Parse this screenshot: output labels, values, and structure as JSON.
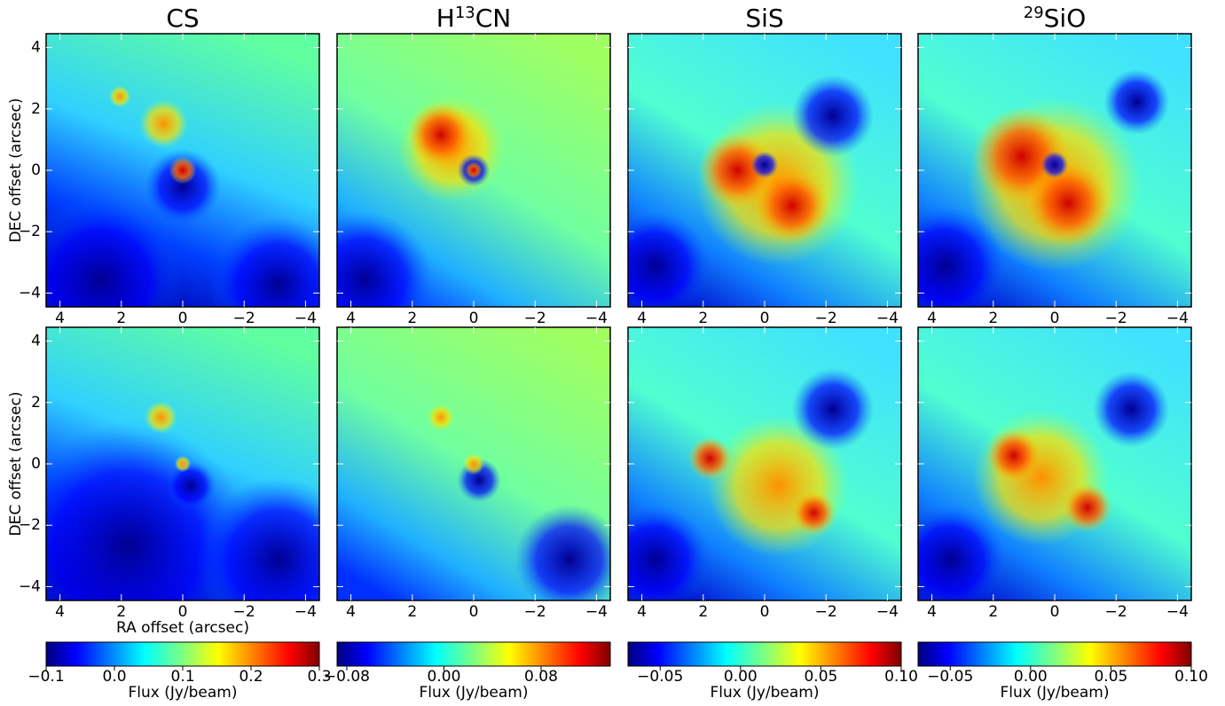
{
  "chart_data": [
    {
      "type": "heatmap",
      "title": [
        {
          "text": "CS"
        }
      ],
      "ylabel": "DEC offset (arcsec)",
      "xlim": [
        4.45,
        -4.45
      ],
      "ylim": [
        -4.45,
        4.45
      ],
      "xticks": [
        4,
        2,
        0,
        {
          "value": -2,
          "label": "−2"
        },
        {
          "value": -4,
          "label": "−4"
        }
      ],
      "yticks": [
        {
          "value": -4,
          "label": "−4"
        },
        {
          "value": -2,
          "label": "−2"
        },
        0,
        2,
        4
      ]
    },
    {
      "type": "heatmap",
      "title": [
        {
          "text": "H"
        },
        {
          "text": "13",
          "sup": true
        },
        {
          "text": "CN"
        }
      ],
      "xlim": [
        4.45,
        -4.45
      ],
      "ylim": [
        -4.45,
        4.45
      ],
      "xticks": [
        4,
        2,
        0,
        {
          "value": -2,
          "label": "−2"
        },
        {
          "value": -4,
          "label": "−4"
        }
      ],
      "yticks": [
        -4,
        -2,
        0,
        2,
        4
      ]
    },
    {
      "type": "heatmap",
      "title": [
        {
          "text": "SiS"
        }
      ],
      "xlim": [
        4.45,
        -4.45
      ],
      "ylim": [
        -4.45,
        4.45
      ],
      "xticks": [
        4,
        2,
        0,
        {
          "value": -2,
          "label": "−2"
        },
        {
          "value": -4,
          "label": "−4"
        }
      ],
      "yticks": [
        -4,
        -2,
        0,
        2,
        4
      ]
    },
    {
      "type": "heatmap",
      "title": [
        {
          "text": "29",
          "sup": true
        },
        {
          "text": "SiO"
        }
      ],
      "xlim": [
        4.45,
        -4.45
      ],
      "ylim": [
        -4.45,
        4.45
      ],
      "xticks": [
        4,
        2,
        0,
        {
          "value": -2,
          "label": "−2"
        },
        {
          "value": -4,
          "label": "−4"
        }
      ],
      "yticks": [
        -4,
        -2,
        0,
        2,
        4
      ]
    },
    {
      "type": "heatmap",
      "ylabel": "DEC offset (arcsec)",
      "xlabel": "RA offset (arcsec)",
      "xlim": [
        4.45,
        -4.45
      ],
      "ylim": [
        -4.45,
        4.45
      ],
      "xticks": [
        4,
        2,
        0,
        {
          "value": -2,
          "label": "−2"
        },
        {
          "value": -4,
          "label": "−4"
        }
      ],
      "yticks": [
        {
          "value": -4,
          "label": "−4"
        },
        {
          "value": -2,
          "label": "−2"
        },
        0,
        2,
        4
      ],
      "colorbar": {
        "label": "Flux (Jy/beam)",
        "colormap": "jet",
        "lim": [
          -0.1,
          0.3
        ],
        "ticks": [
          {
            "value": -0.1,
            "label": "−0.1"
          },
          {
            "value": 0,
            "label": "0.0"
          },
          0.1,
          0.2,
          0.3
        ]
      }
    },
    {
      "type": "heatmap",
      "xlim": [
        4.45,
        -4.45
      ],
      "ylim": [
        -4.45,
        4.45
      ],
      "xticks": [
        4,
        2,
        0,
        {
          "value": -2,
          "label": "−2"
        },
        {
          "value": -4,
          "label": "−4"
        }
      ],
      "yticks": [
        -4,
        -2,
        0,
        2,
        4
      ],
      "colorbar": {
        "label": "Flux (Jy/beam)",
        "colormap": "jet",
        "lim": [
          -0.088,
          0.137
        ],
        "ticks": [
          {
            "value": -0.08,
            "label": "−0.08"
          },
          {
            "value": 0,
            "label": "0.00"
          },
          0.08
        ]
      }
    },
    {
      "type": "heatmap",
      "xlim": [
        4.45,
        -4.45
      ],
      "ylim": [
        -4.45,
        4.45
      ],
      "xticks": [
        4,
        2,
        0,
        {
          "value": -2,
          "label": "−2"
        },
        {
          "value": -4,
          "label": "−4"
        }
      ],
      "yticks": [
        -4,
        -2,
        0,
        2,
        4
      ],
      "colorbar": {
        "label": "Flux (Jy/beam)",
        "colormap": "jet",
        "lim": [
          -0.07,
          0.1
        ],
        "ticks": [
          {
            "value": -0.05,
            "label": "−0.05"
          },
          {
            "value": 0,
            "label": "0.00"
          },
          0.05,
          {
            "value": 0.1,
            "label": "0.10"
          }
        ]
      }
    },
    {
      "type": "heatmap",
      "xlim": [
        4.45,
        -4.45
      ],
      "ylim": [
        -4.45,
        4.45
      ],
      "xticks": [
        4,
        2,
        0,
        {
          "value": -2,
          "label": "−2"
        },
        {
          "value": -4,
          "label": "−4"
        }
      ],
      "yticks": [
        -4,
        -2,
        0,
        2,
        4
      ],
      "colorbar": {
        "label": "Flux (Jy/beam)",
        "colormap": "jet",
        "lim": [
          -0.07,
          0.1
        ],
        "ticks": [
          {
            "value": -0.05,
            "label": "−0.05"
          },
          {
            "value": 0,
            "label": "0.00"
          },
          0.05,
          {
            "value": 0.1,
            "label": "0.10"
          }
        ]
      }
    }
  ]
}
